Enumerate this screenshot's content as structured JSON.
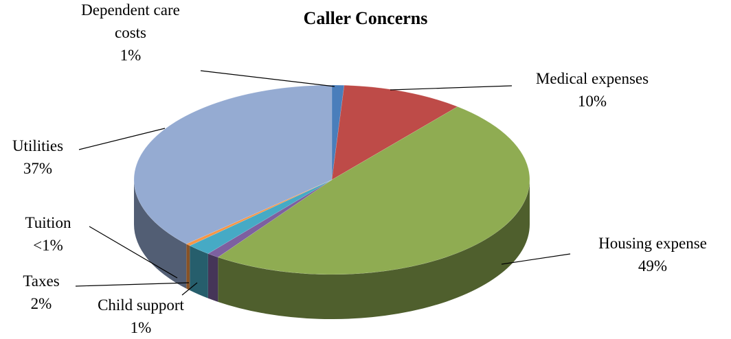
{
  "chart_data": {
    "type": "pie",
    "title": "Caller Concerns",
    "categories": [
      "Dependent care costs",
      "Medical expenses",
      "Housing expense",
      "Child support",
      "Taxes",
      "Tuition",
      "Utilities"
    ],
    "values": [
      1,
      10,
      49,
      1,
      2,
      0.4,
      37
    ],
    "value_labels": [
      "1%",
      "10%",
      "49%",
      "1%",
      "2%",
      "<1%",
      "37%"
    ],
    "colors": [
      "#4a7ebb",
      "#be4b48",
      "#8fac52",
      "#7d60a0",
      "#46aac5",
      "#f79646",
      "#95abd2"
    ],
    "view": "3d"
  }
}
